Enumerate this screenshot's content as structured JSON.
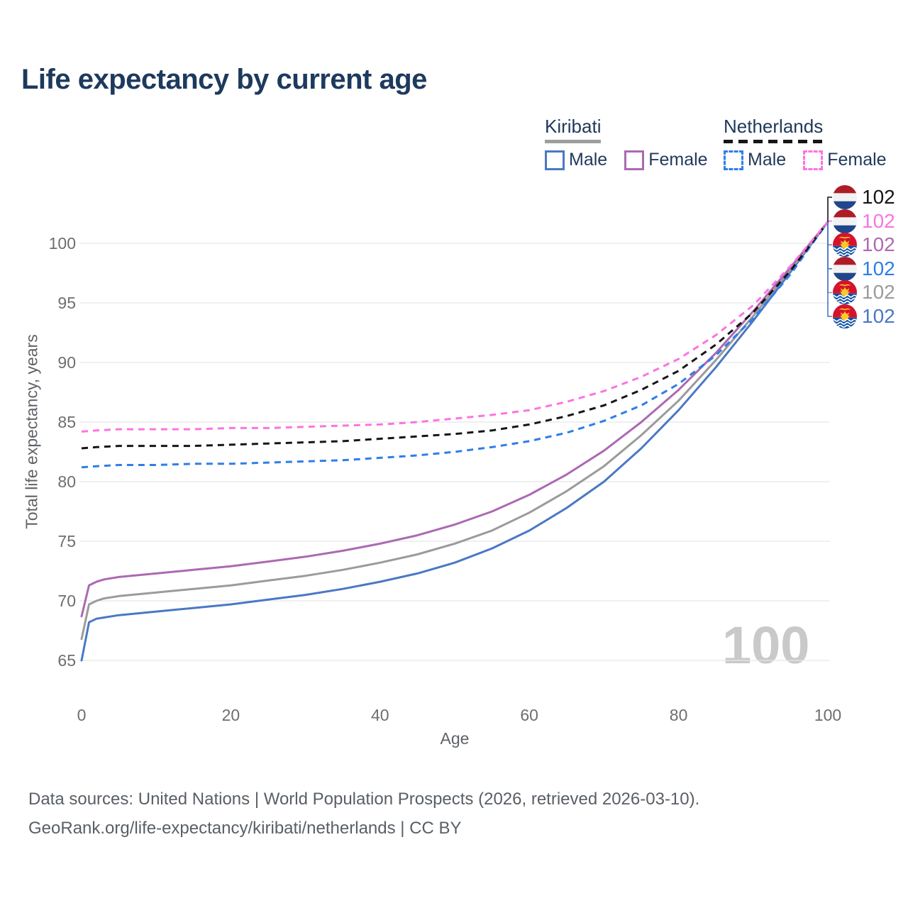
{
  "title": "Life expectancy by current age",
  "legend": {
    "groups": [
      {
        "country": "Kiribati",
        "line_style": "solid",
        "underline_color": "#9e9e9e",
        "items": [
          {
            "label": "Male",
            "color": "#4a78c4"
          },
          {
            "label": "Female",
            "color": "#ac69b2"
          }
        ]
      },
      {
        "country": "Netherlands",
        "line_style": "dashed",
        "underline_color": "#161616",
        "items": [
          {
            "label": "Male",
            "color": "#2e7ee8"
          },
          {
            "label": "Female",
            "color": "#fb74e0"
          }
        ]
      }
    ]
  },
  "chart_data": {
    "type": "line",
    "title": "Life expectancy by current age",
    "xlabel": "Age",
    "ylabel": "Total life expectancy, years",
    "xlim": [
      0,
      100
    ],
    "ylim": [
      63.5,
      103
    ],
    "xticks": [
      0,
      20,
      40,
      60,
      80,
      100
    ],
    "yticks": [
      65,
      70,
      75,
      80,
      85,
      90,
      95,
      100
    ],
    "grid": "horizontal-only",
    "legend_position": "top-right",
    "series": [
      {
        "name": "Kiribati Male",
        "country": "Kiribati",
        "sex": "Male",
        "color": "#4a78c4",
        "dash": false,
        "points": [
          [
            0,
            65.0
          ],
          [
            1,
            68.2
          ],
          [
            2,
            68.5
          ],
          [
            3,
            68.6
          ],
          [
            5,
            68.8
          ],
          [
            10,
            69.1
          ],
          [
            15,
            69.4
          ],
          [
            20,
            69.7
          ],
          [
            25,
            70.1
          ],
          [
            30,
            70.5
          ],
          [
            35,
            71.0
          ],
          [
            40,
            71.6
          ],
          [
            45,
            72.3
          ],
          [
            50,
            73.2
          ],
          [
            55,
            74.4
          ],
          [
            60,
            75.9
          ],
          [
            65,
            77.8
          ],
          [
            70,
            80.0
          ],
          [
            75,
            82.8
          ],
          [
            80,
            86.0
          ],
          [
            85,
            89.6
          ],
          [
            90,
            93.5
          ],
          [
            95,
            97.6
          ],
          [
            100,
            101.8
          ]
        ]
      },
      {
        "name": "Kiribati Total",
        "country": "Kiribati",
        "sex": "Both",
        "color": "#9b9b9b",
        "dash": false,
        "points": [
          [
            0,
            66.8
          ],
          [
            1,
            69.7
          ],
          [
            2,
            70.0
          ],
          [
            3,
            70.2
          ],
          [
            5,
            70.4
          ],
          [
            10,
            70.7
          ],
          [
            15,
            71.0
          ],
          [
            20,
            71.3
          ],
          [
            25,
            71.7
          ],
          [
            30,
            72.1
          ],
          [
            35,
            72.6
          ],
          [
            40,
            73.2
          ],
          [
            45,
            73.9
          ],
          [
            50,
            74.8
          ],
          [
            55,
            75.9
          ],
          [
            60,
            77.4
          ],
          [
            65,
            79.2
          ],
          [
            70,
            81.3
          ],
          [
            75,
            83.9
          ],
          [
            80,
            86.8
          ],
          [
            85,
            90.2
          ],
          [
            90,
            93.9
          ],
          [
            95,
            97.8
          ],
          [
            100,
            101.8
          ]
        ]
      },
      {
        "name": "Kiribati Female",
        "country": "Kiribati",
        "sex": "Female",
        "color": "#ac69b2",
        "dash": false,
        "points": [
          [
            0,
            68.7
          ],
          [
            1,
            71.3
          ],
          [
            2,
            71.6
          ],
          [
            3,
            71.8
          ],
          [
            5,
            72.0
          ],
          [
            10,
            72.3
          ],
          [
            15,
            72.6
          ],
          [
            20,
            72.9
          ],
          [
            25,
            73.3
          ],
          [
            30,
            73.7
          ],
          [
            35,
            74.2
          ],
          [
            40,
            74.8
          ],
          [
            45,
            75.5
          ],
          [
            50,
            76.4
          ],
          [
            55,
            77.5
          ],
          [
            60,
            78.9
          ],
          [
            65,
            80.6
          ],
          [
            70,
            82.6
          ],
          [
            75,
            85.0
          ],
          [
            80,
            87.7
          ],
          [
            85,
            90.8
          ],
          [
            90,
            94.3
          ],
          [
            95,
            98.0
          ],
          [
            100,
            101.8
          ]
        ]
      },
      {
        "name": "Netherlands Male",
        "country": "Netherlands",
        "sex": "Male",
        "color": "#2e7ee8",
        "dash": true,
        "points": [
          [
            0,
            81.2
          ],
          [
            2,
            81.3
          ],
          [
            5,
            81.4
          ],
          [
            10,
            81.4
          ],
          [
            15,
            81.5
          ],
          [
            20,
            81.5
          ],
          [
            25,
            81.6
          ],
          [
            30,
            81.7
          ],
          [
            35,
            81.8
          ],
          [
            40,
            82.0
          ],
          [
            45,
            82.2
          ],
          [
            50,
            82.5
          ],
          [
            55,
            82.9
          ],
          [
            60,
            83.4
          ],
          [
            65,
            84.1
          ],
          [
            70,
            85.1
          ],
          [
            75,
            86.4
          ],
          [
            80,
            88.2
          ],
          [
            85,
            90.6
          ],
          [
            90,
            93.7
          ],
          [
            95,
            97.4
          ],
          [
            100,
            101.8
          ]
        ]
      },
      {
        "name": "Netherlands Total",
        "country": "Netherlands",
        "sex": "Both",
        "color": "#161616",
        "dash": true,
        "points": [
          [
            0,
            82.8
          ],
          [
            2,
            82.9
          ],
          [
            5,
            83.0
          ],
          [
            10,
            83.0
          ],
          [
            15,
            83.0
          ],
          [
            20,
            83.1
          ],
          [
            25,
            83.2
          ],
          [
            30,
            83.3
          ],
          [
            35,
            83.4
          ],
          [
            40,
            83.6
          ],
          [
            45,
            83.8
          ],
          [
            50,
            84.0
          ],
          [
            55,
            84.3
          ],
          [
            60,
            84.8
          ],
          [
            65,
            85.5
          ],
          [
            70,
            86.4
          ],
          [
            75,
            87.7
          ],
          [
            80,
            89.3
          ],
          [
            85,
            91.5
          ],
          [
            90,
            94.2
          ],
          [
            95,
            97.7
          ],
          [
            100,
            101.8
          ]
        ]
      },
      {
        "name": "Netherlands Female",
        "country": "Netherlands",
        "sex": "Female",
        "color": "#fb74e0",
        "dash": true,
        "points": [
          [
            0,
            84.2
          ],
          [
            2,
            84.3
          ],
          [
            5,
            84.4
          ],
          [
            10,
            84.4
          ],
          [
            15,
            84.4
          ],
          [
            20,
            84.5
          ],
          [
            25,
            84.5
          ],
          [
            30,
            84.6
          ],
          [
            35,
            84.7
          ],
          [
            40,
            84.8
          ],
          [
            45,
            85.0
          ],
          [
            50,
            85.3
          ],
          [
            55,
            85.6
          ],
          [
            60,
            86.0
          ],
          [
            65,
            86.7
          ],
          [
            70,
            87.6
          ],
          [
            75,
            88.8
          ],
          [
            80,
            90.3
          ],
          [
            85,
            92.3
          ],
          [
            90,
            94.8
          ],
          [
            95,
            98.1
          ],
          [
            100,
            101.8
          ]
        ]
      }
    ]
  },
  "end_labels": [
    {
      "series": "Netherlands Total",
      "flag": "netherlands",
      "value": "102",
      "color": "#161616"
    },
    {
      "series": "Netherlands Female",
      "flag": "netherlands",
      "value": "102",
      "color": "#fb74e0"
    },
    {
      "series": "Kiribati Female",
      "flag": "kiribati",
      "value": "102",
      "color": "#ac69b2"
    },
    {
      "series": "Netherlands Male",
      "flag": "netherlands",
      "value": "102",
      "color": "#2e7ee8"
    },
    {
      "series": "Kiribati Total",
      "flag": "kiribati",
      "value": "102",
      "color": "#9b9b9b"
    },
    {
      "series": "Kiribati Male",
      "flag": "kiribati",
      "value": "102",
      "color": "#4a78c4"
    }
  ],
  "watermark": "100",
  "footer": {
    "line1": "Data sources: United Nations | World Population Prospects (2026, retrieved 2026-03-10).",
    "line2": "GeoRank.org/life-expectancy/kiribati/netherlands | CC BY"
  },
  "colors": {
    "title": "#1d3a5e",
    "tick_label": "#6e6e6e",
    "gridline": "#e8e8ea",
    "watermark": "#c9c9c9",
    "footer": "#595f66"
  }
}
